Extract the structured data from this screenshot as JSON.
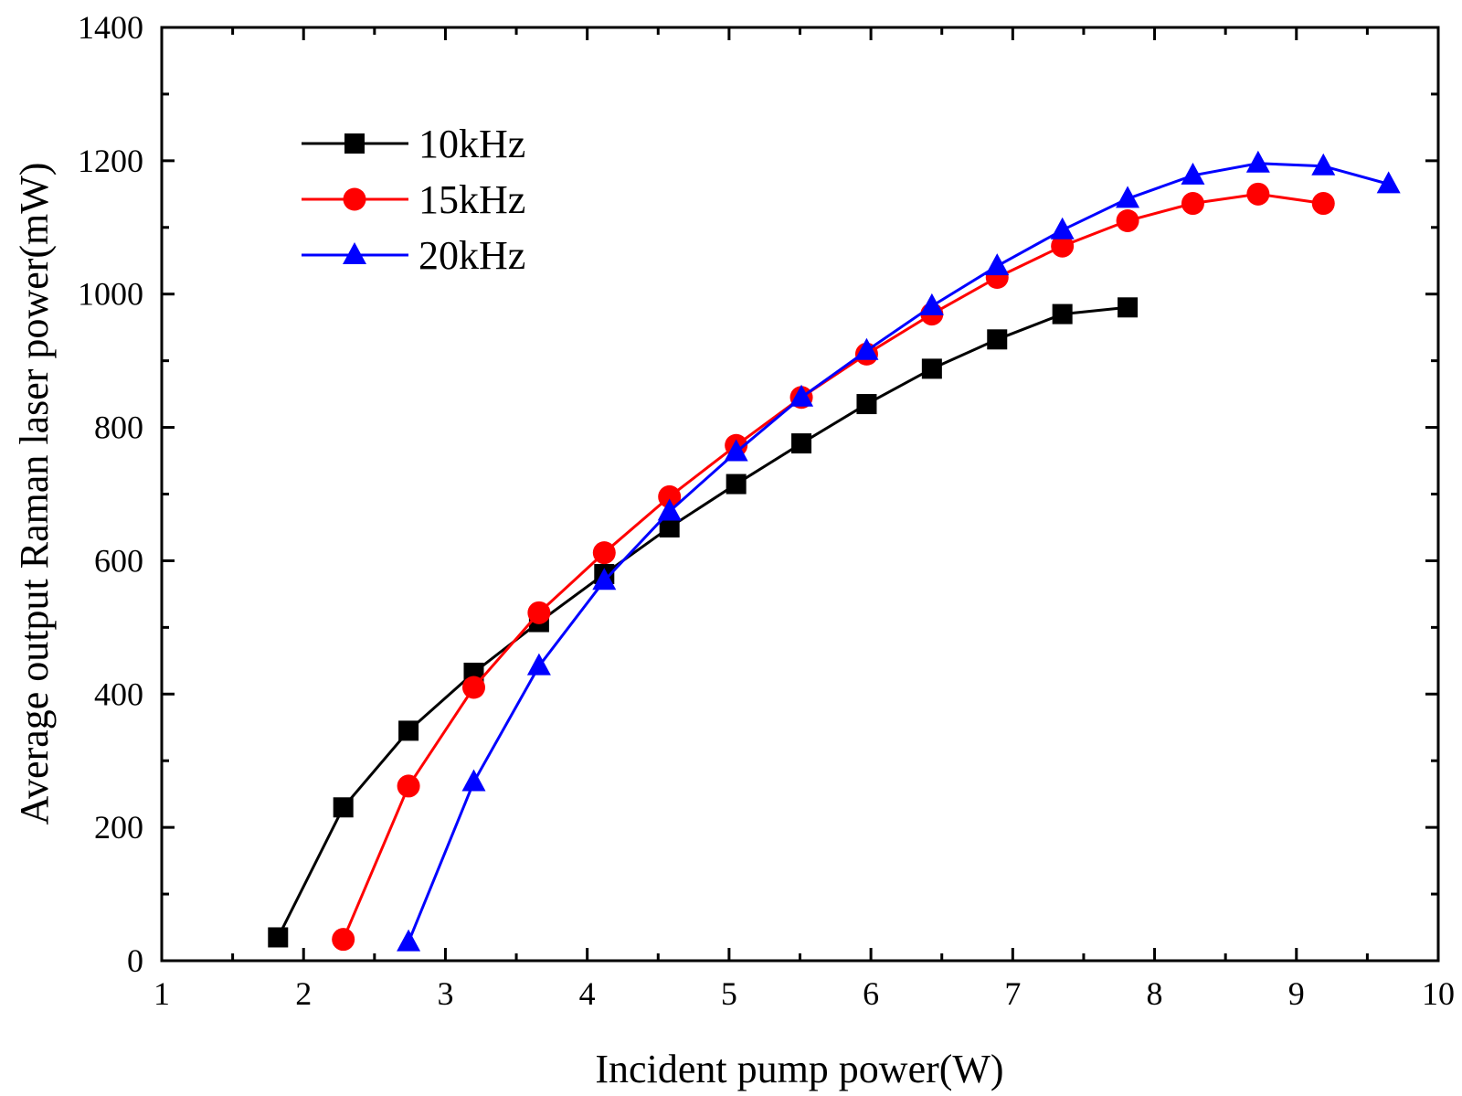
{
  "chart_data": {
    "type": "line",
    "title": "",
    "xlabel": "Incident pump power(W)",
    "ylabel": "Average output Raman laser power(mW)",
    "xlim": [
      1,
      10
    ],
    "ylim": [
      0,
      1400
    ],
    "xticks": [
      1,
      2,
      3,
      4,
      5,
      6,
      7,
      8,
      9,
      10
    ],
    "yticks": [
      0,
      200,
      400,
      600,
      800,
      1000,
      1200,
      1400
    ],
    "grid": false,
    "legend_position": "top-left",
    "series": [
      {
        "name": "10kHz",
        "color": "#000000",
        "marker": "square",
        "x": [
          1.82,
          2.28,
          2.74,
          3.2,
          3.66,
          4.12,
          4.58,
          5.05,
          5.51,
          5.97,
          6.43,
          6.89,
          7.35,
          7.81
        ],
        "y": [
          35,
          230,
          345,
          432,
          508,
          580,
          650,
          715,
          776,
          835,
          888,
          932,
          970,
          980
        ]
      },
      {
        "name": "15kHz",
        "color": "#ff0000",
        "marker": "circle",
        "x": [
          2.28,
          2.74,
          3.2,
          3.66,
          4.12,
          4.58,
          5.05,
          5.51,
          5.97,
          6.43,
          6.89,
          7.35,
          7.81,
          8.27,
          8.73,
          9.19
        ],
        "y": [
          32,
          262,
          410,
          522,
          612,
          696,
          773,
          845,
          910,
          970,
          1025,
          1072,
          1110,
          1136,
          1150,
          1136
        ]
      },
      {
        "name": "20kHz",
        "color": "#0000ff",
        "marker": "triangle",
        "x": [
          2.74,
          3.2,
          3.66,
          4.12,
          4.58,
          5.05,
          5.51,
          5.97,
          6.43,
          6.89,
          7.35,
          7.81,
          8.27,
          8.73,
          9.19,
          9.65
        ],
        "y": [
          28,
          268,
          442,
          570,
          674,
          763,
          845,
          915,
          982,
          1042,
          1096,
          1143,
          1178,
          1196,
          1192,
          1165
        ]
      }
    ]
  }
}
